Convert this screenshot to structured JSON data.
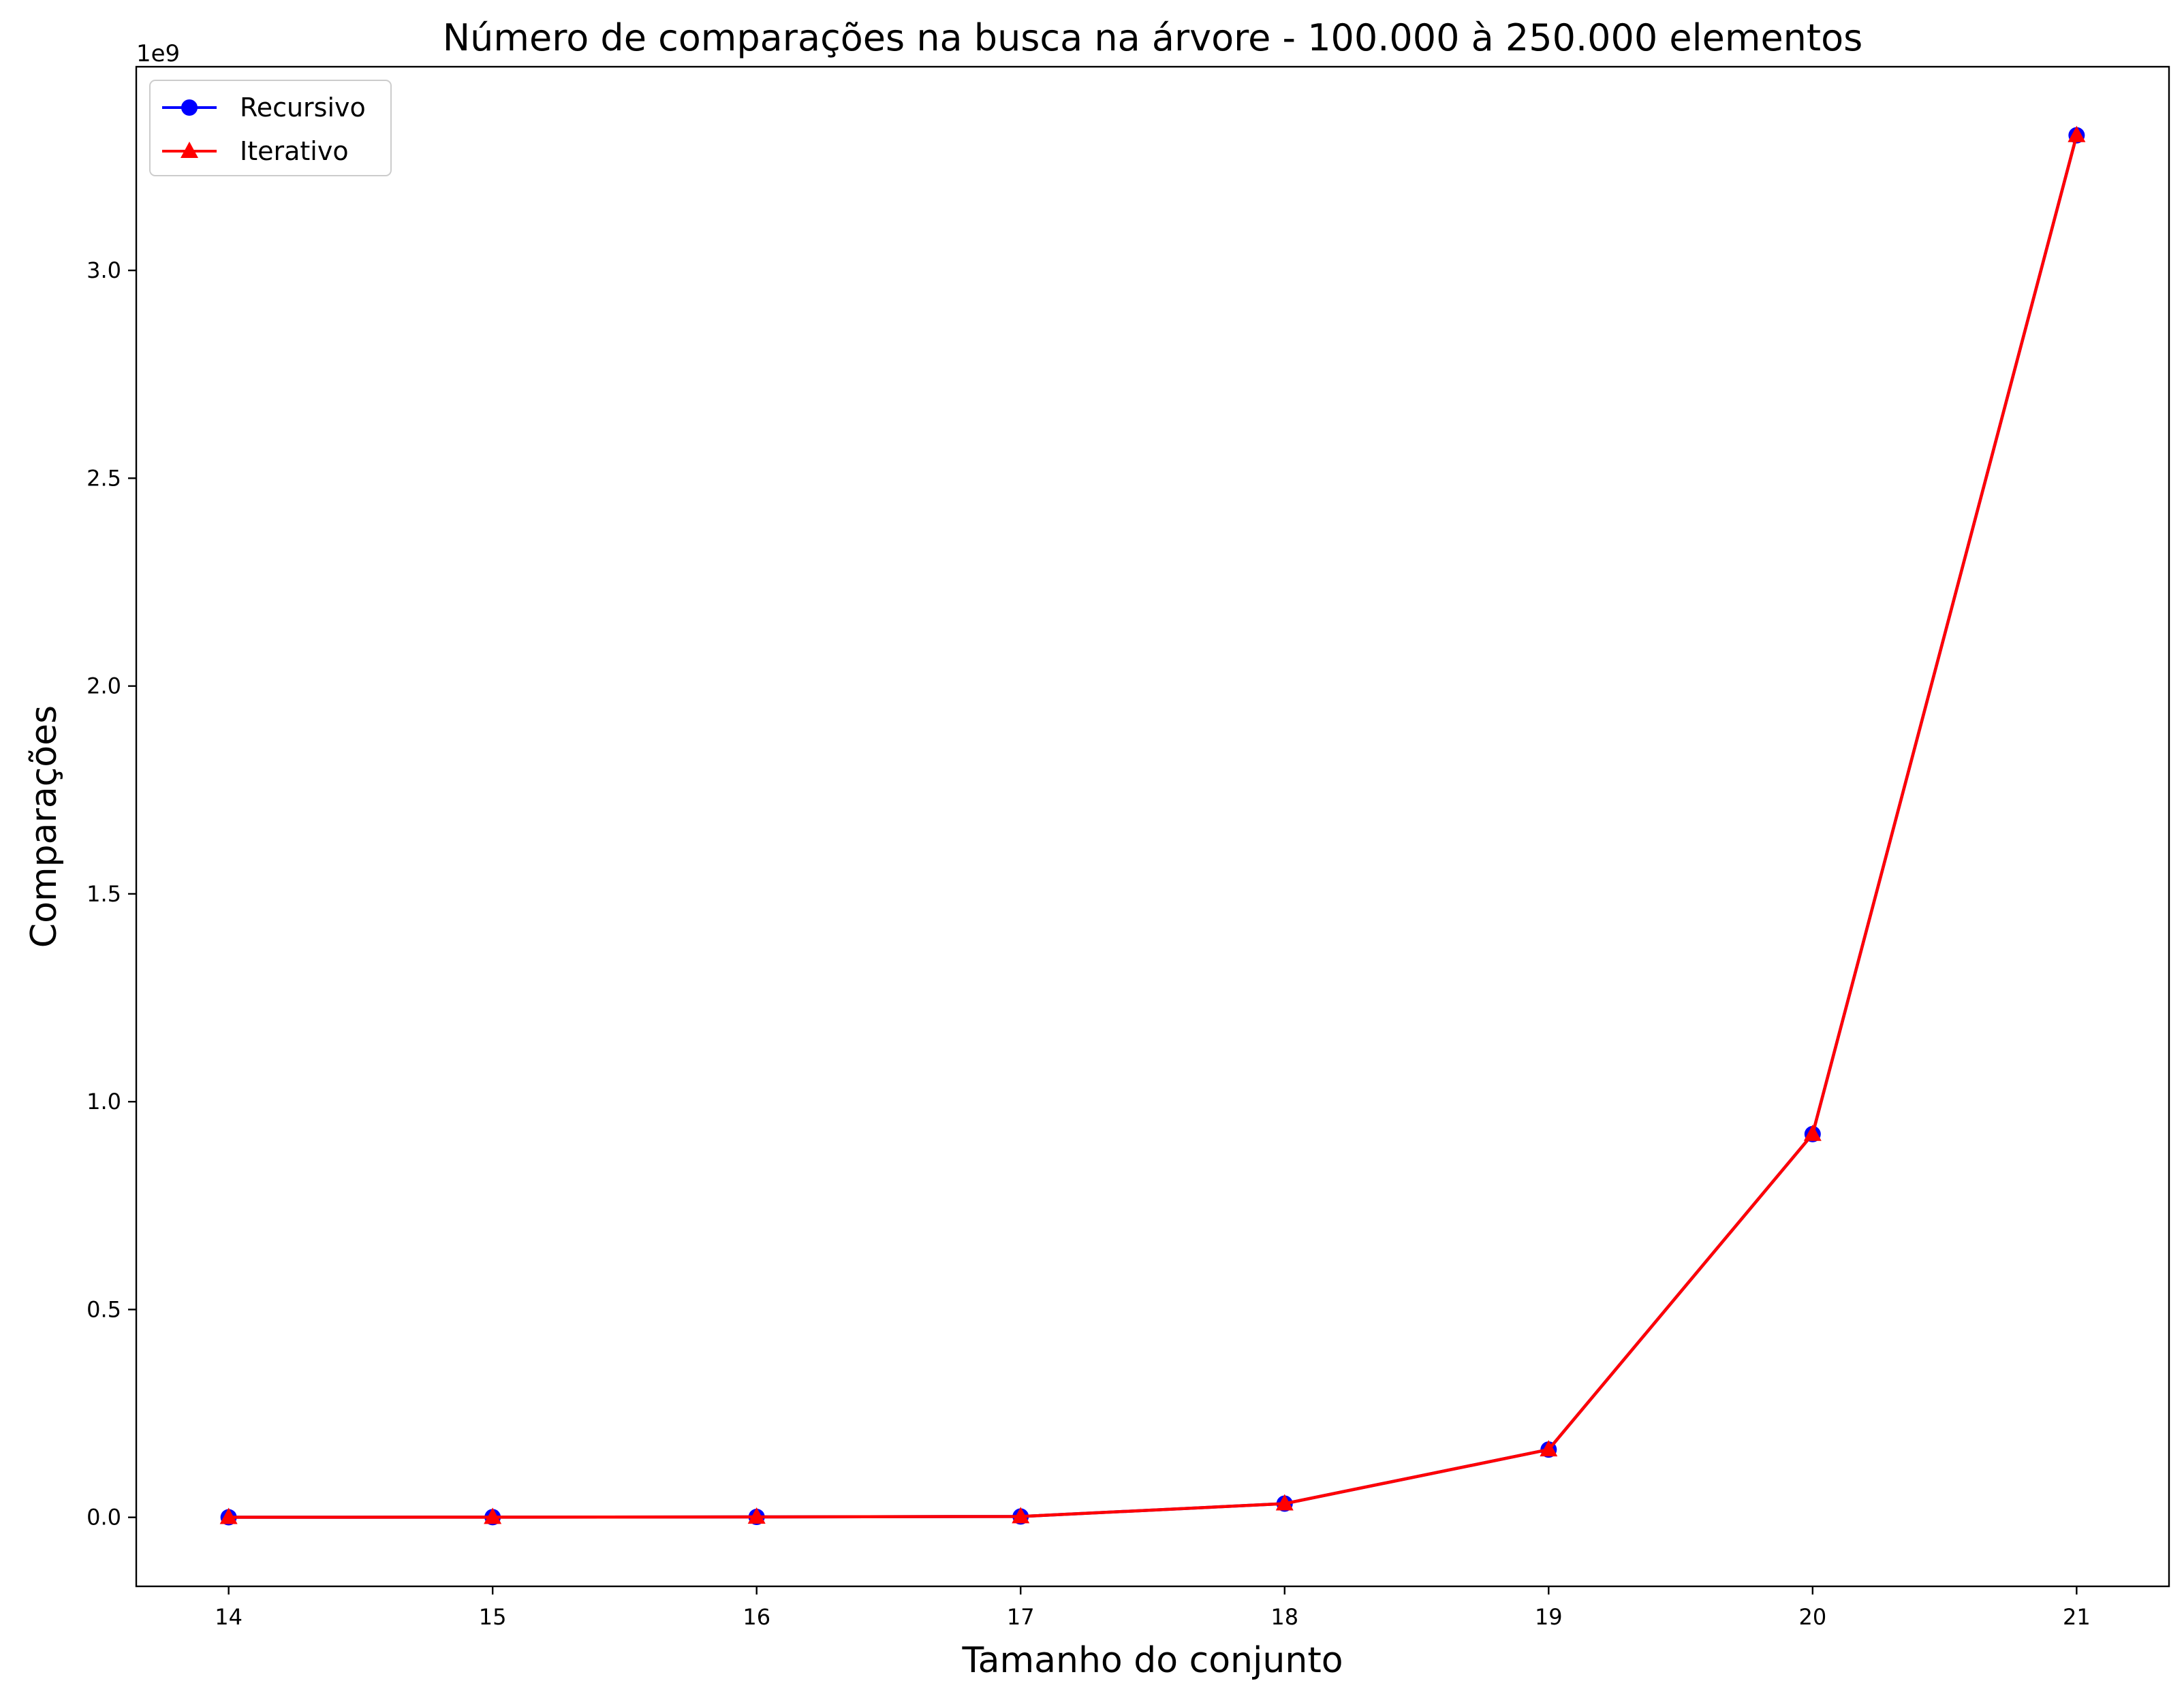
{
  "chart_data": {
    "type": "line",
    "title": "Número de comparações na busca na árvore - 100.000 à 250.000 elementos",
    "xlabel": "Tamanho do conjunto",
    "ylabel": "Comparações",
    "y_offset_label": "1e9",
    "x": [
      14,
      15,
      16,
      17,
      18,
      19,
      20,
      21
    ],
    "x_tick_labels": [
      "14",
      "15",
      "16",
      "17",
      "18",
      "19",
      "20",
      "21"
    ],
    "y_ticks": [
      0.0,
      0.5,
      1.0,
      1.5,
      2.0,
      2.5,
      3.0
    ],
    "y_tick_labels": [
      "0.0",
      "0.5",
      "1.0",
      "1.5",
      "2.0",
      "2.5",
      "3.0"
    ],
    "xlim": [
      13.65,
      21.35
    ],
    "ylim": [
      -0.166,
      3.49
    ],
    "grid": false,
    "legend_position": "top-left",
    "series": [
      {
        "name": "Recursivo",
        "color": "#0000ff",
        "marker": "circle",
        "values": [
          0.0002,
          0.0005,
          0.001,
          0.002,
          0.033,
          0.163,
          0.922,
          3.325
        ]
      },
      {
        "name": "Iterativo",
        "color": "#ff0000",
        "marker": "triangle",
        "values": [
          0.0002,
          0.0005,
          0.001,
          0.002,
          0.033,
          0.163,
          0.922,
          3.325
        ]
      }
    ]
  }
}
